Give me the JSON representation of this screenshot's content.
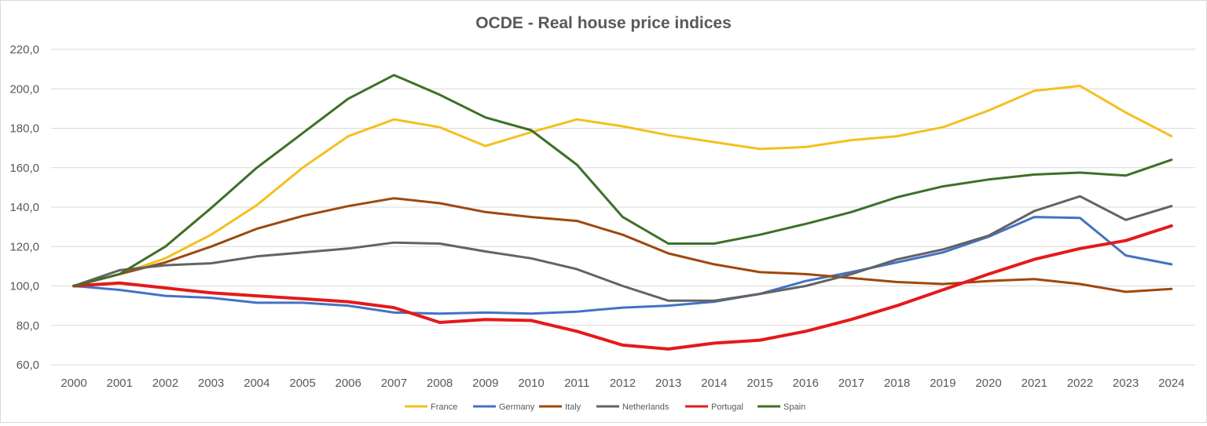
{
  "chart_data": {
    "type": "line",
    "title": "OCDE - Real house price indices",
    "xlabel": "",
    "ylabel": "",
    "ylim": [
      60,
      220
    ],
    "y_ticks": [
      "60,0",
      "80,0",
      "100,0",
      "120,0",
      "140,0",
      "160,0",
      "180,0",
      "200,0",
      "220,0"
    ],
    "y_tick_values": [
      60,
      80,
      100,
      120,
      140,
      160,
      180,
      200,
      220
    ],
    "grid": true,
    "legend": "bottom",
    "x": [
      "2000",
      "2001",
      "2002",
      "2003",
      "2004",
      "2005",
      "2006",
      "2007",
      "2008",
      "2009",
      "2010",
      "2011",
      "2012",
      "2013",
      "2014",
      "2015",
      "2016",
      "2017",
      "2018",
      "2019",
      "2020",
      "2021",
      "2022",
      "2023",
      "2024"
    ],
    "series": [
      {
        "name": "France",
        "color": "#f4c01e",
        "width": 3,
        "values": [
          100,
          106,
          114,
          126,
          141,
          160,
          176,
          184.5,
          180.5,
          171,
          178,
          184.5,
          181,
          176.5,
          173,
          169.5,
          170.5,
          174,
          176,
          180.5,
          189,
          199,
          201.5,
          188,
          176
        ]
      },
      {
        "name": "Germany",
        "color": "#4472c4",
        "width": 3,
        "values": [
          100,
          98,
          95,
          94,
          91.5,
          91.5,
          90,
          86.5,
          86,
          86.5,
          86,
          87,
          89,
          90,
          92,
          96,
          102.5,
          107,
          112,
          117,
          125,
          135,
          134.5,
          115.5,
          111
        ]
      },
      {
        "name": "Italy",
        "color": "#9e480e",
        "width": 3,
        "values": [
          100,
          106,
          112,
          120,
          129,
          135.5,
          140.5,
          144.5,
          142,
          137.5,
          135,
          133,
          126,
          116.5,
          111,
          107,
          106,
          104,
          102,
          101,
          102.5,
          103.5,
          101,
          97,
          98.5
        ]
      },
      {
        "name": "Netherlands",
        "color": "#636363",
        "width": 3,
        "values": [
          100,
          108,
          110.5,
          111.5,
          115,
          117,
          119,
          122,
          121.5,
          117.5,
          114,
          108.5,
          100,
          92.5,
          92.5,
          96,
          100,
          106,
          113.5,
          118.5,
          125.5,
          138,
          145.5,
          133.5,
          140.5
        ]
      },
      {
        "name": "Portugal",
        "color": "#e31a1c",
        "width": 4,
        "values": [
          100,
          101.5,
          99,
          96.5,
          95,
          93.5,
          92,
          89,
          81.5,
          83,
          82.5,
          77,
          70,
          68,
          71,
          72.5,
          77,
          83,
          90,
          98,
          106,
          113.5,
          119,
          123,
          130.5
        ]
      },
      {
        "name": "Spain",
        "color": "#3e7028",
        "width": 3,
        "values": [
          100,
          106,
          120,
          139.5,
          160,
          177.5,
          195,
          207,
          197,
          185.5,
          179,
          161.5,
          135,
          121.5,
          121.5,
          126,
          131.5,
          137.5,
          145,
          150.5,
          154,
          156.5,
          157.5,
          156,
          164
        ]
      }
    ]
  }
}
